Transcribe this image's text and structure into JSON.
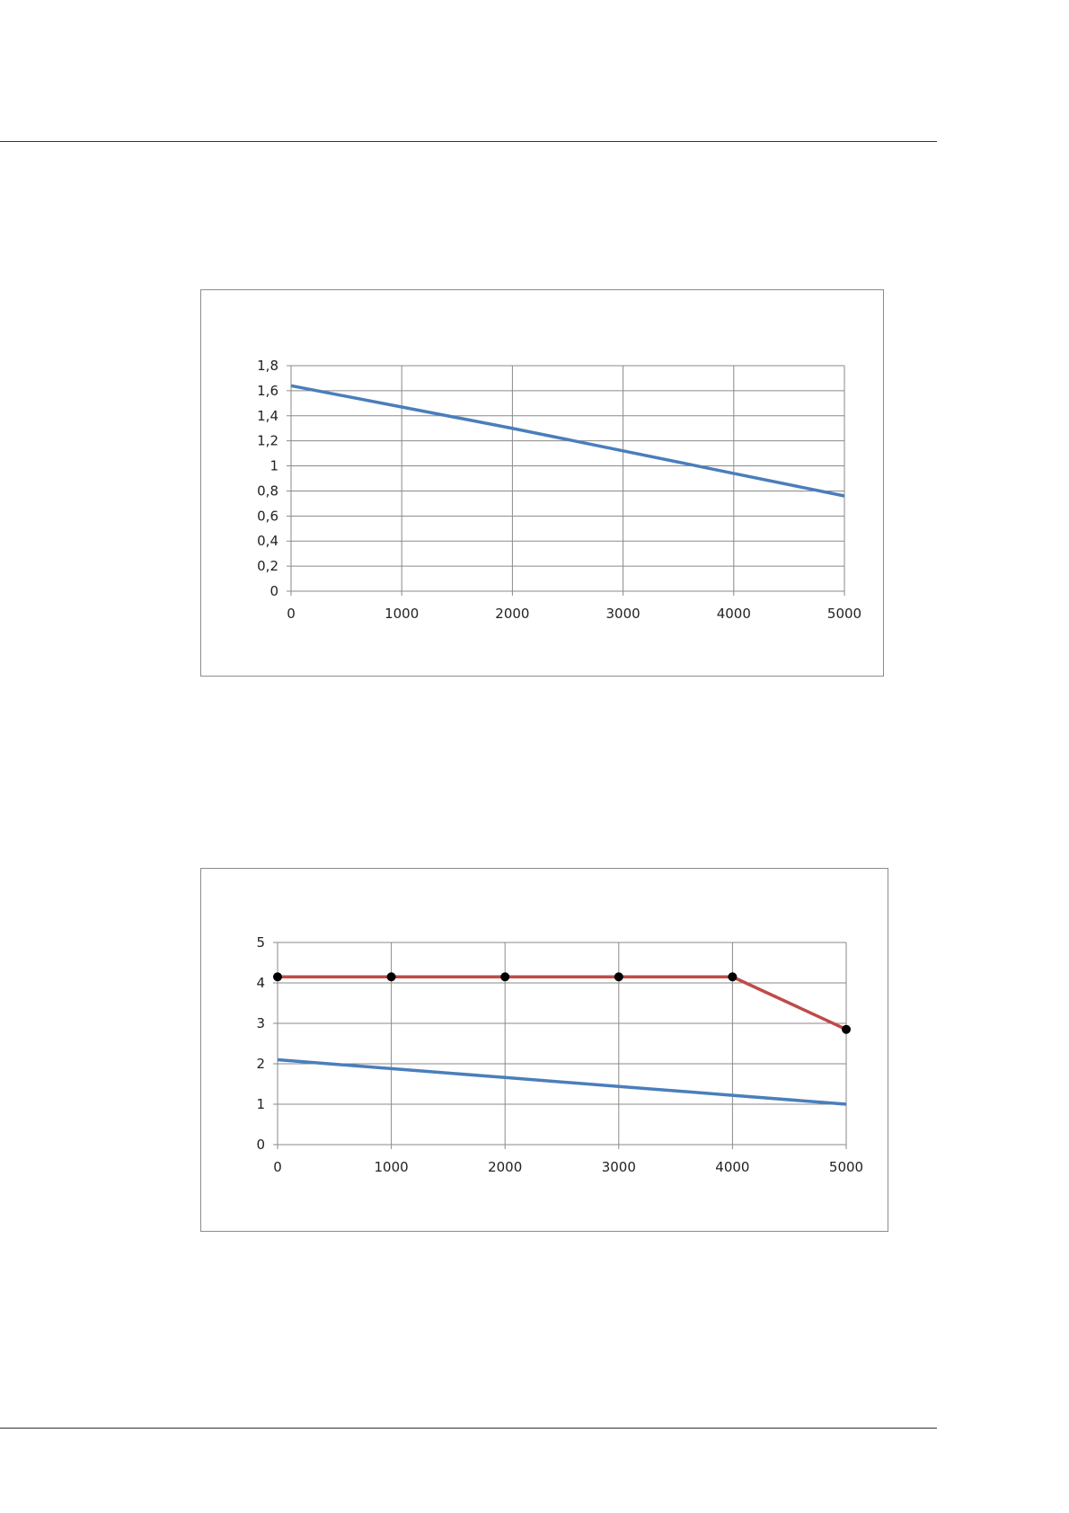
{
  "chart_data": [
    {
      "type": "line",
      "title": "",
      "xlabel": "",
      "ylabel": "",
      "x": [
        0,
        1000,
        2000,
        3000,
        4000,
        5000
      ],
      "xlim": [
        0,
        5000
      ],
      "ylim": [
        0,
        1.8
      ],
      "grid": true,
      "xtick_labels": [
        "0",
        "1000",
        "2000",
        "3000",
        "4000",
        "5000"
      ],
      "ytick_labels": [
        "0",
        "0,2",
        "0,4",
        "0,6",
        "0,8",
        "1",
        "1,2",
        "1,4",
        "1,6",
        "1,8"
      ],
      "ytick_values": [
        0,
        0.2,
        0.4,
        0.6,
        0.8,
        1.0,
        1.2,
        1.4,
        1.6,
        1.8
      ],
      "series": [
        {
          "name": "series-1",
          "color": "#4a7ebb",
          "markers": false,
          "values": [
            1.64,
            1.47,
            1.3,
            1.12,
            0.94,
            0.76
          ]
        }
      ]
    },
    {
      "type": "line",
      "title": "",
      "xlabel": "",
      "ylabel": "",
      "x": [
        0,
        1000,
        2000,
        3000,
        4000,
        5000
      ],
      "xlim": [
        0,
        5000
      ],
      "ylim": [
        0,
        5
      ],
      "grid": true,
      "xtick_labels": [
        "0",
        "1000",
        "2000",
        "3000",
        "4000",
        "5000"
      ],
      "ytick_labels": [
        "0",
        "1",
        "2",
        "3",
        "4",
        "5"
      ],
      "ytick_values": [
        0,
        1,
        2,
        3,
        4,
        5
      ],
      "series": [
        {
          "name": "series-1",
          "color": "#4a7ebb",
          "markers": false,
          "values": [
            2.1,
            1.88,
            1.66,
            1.44,
            1.22,
            1.0
          ]
        },
        {
          "name": "series-2",
          "color": "#be4b48",
          "markers": true,
          "values": [
            4.15,
            4.15,
            4.15,
            4.15,
            4.15,
            2.85
          ]
        }
      ]
    }
  ]
}
